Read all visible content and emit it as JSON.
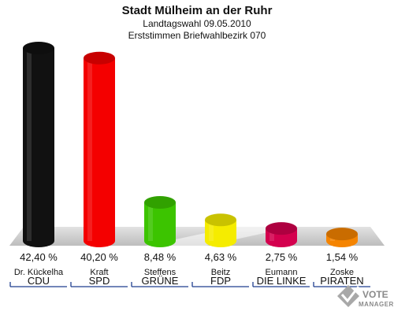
{
  "chart_data": {
    "type": "bar",
    "title": "Stadt Mülheim an der Ruhr",
    "subtitle_lines": [
      "Landtagswahl 09.05.2010",
      "Erststimmen Briefwahlbezirk 070"
    ],
    "categories": [
      "CDU",
      "SPD",
      "GRÜNE",
      "FDP",
      "DIE LINKE",
      "PIRATEN"
    ],
    "candidates": [
      "Dr. Kückelha",
      "Kraft",
      "Steffens",
      "Beitz",
      "Eumann",
      "Zoske"
    ],
    "values": [
      42.4,
      40.2,
      8.48,
      4.63,
      2.75,
      1.54
    ],
    "value_labels": [
      "42,40 %",
      "40,20 %",
      "8,48 %",
      "4,63 %",
      "2,75 %",
      "1,54 %"
    ],
    "colors": [
      "#111111",
      "#f40000",
      "#3cc400",
      "#f5ec00",
      "#d4004e",
      "#f58400"
    ],
    "ylim": [
      0,
      42.4
    ],
    "grid": false,
    "legend": "none"
  },
  "logo": {
    "line1": "VOTE",
    "line2": "MANAGER",
    "icon": "checkmark-ballot-icon"
  }
}
